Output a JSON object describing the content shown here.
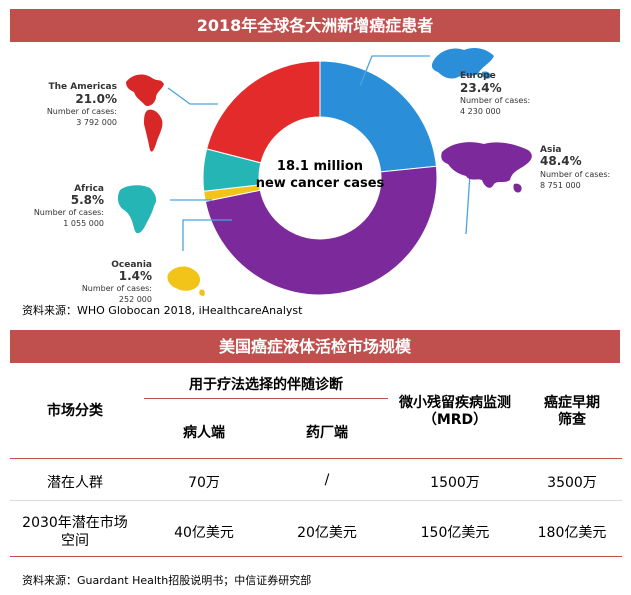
{
  "chart_data": {
    "type": "pie",
    "title": "2018年全球各大洲新增癌症患者",
    "center_label": [
      "18.1 million",
      "new cancer cases"
    ],
    "source": "资料来源：WHO Globocan 2018, iHealthcareAnalyst",
    "slices": [
      {
        "name": "Europe",
        "percent_label": "23.4%",
        "value": 23.4,
        "cases_label": "Number of cases:",
        "cases": "4 230 000",
        "color": "#2a8fd8"
      },
      {
        "name": "Asia",
        "percent_label": "48.4%",
        "value": 48.4,
        "cases_label": "Number of cases:",
        "cases": "8 751 000",
        "color": "#7c2a9b"
      },
      {
        "name": "Oceania",
        "percent_label": "1.4%",
        "value": 1.4,
        "cases_label": "Number of cases:",
        "cases": "252 000",
        "color": "#f2c318"
      },
      {
        "name": "Africa",
        "percent_label": "5.8%",
        "value": 5.8,
        "cases_label": "Number of cases:",
        "cases": "1 055 000",
        "color": "#26b5b5"
      },
      {
        "name": "The Americas",
        "percent_label": "21.0%",
        "value": 21.0,
        "cases_label": "Number of cases:",
        "cases": "3 792 000",
        "color": "#e32b2b"
      }
    ]
  },
  "table": {
    "title": "美国癌症液体活检市场规模",
    "header": {
      "category": "市场分类",
      "group": "用于疗法选择的伴随诊断",
      "sub1": "病人端",
      "sub2": "药厂端",
      "mrd_line1": "微小残留疾病监测",
      "mrd_line2": "（MRD）",
      "early_line1": "癌症早期",
      "early_line2": "筛查"
    },
    "rows": [
      {
        "label_line1": "潜在人群",
        "label_line2": "",
        "values": [
          "70万",
          "/",
          "1500万",
          "3500万"
        ]
      },
      {
        "label_line1": "2030年潜在市场",
        "label_line2": "空间",
        "values": [
          "40亿美元",
          "20亿美元",
          "150亿美元",
          "180亿美元"
        ]
      }
    ],
    "source": "资料来源：Guardant Health招股说明书；中信证券研究部"
  },
  "colors": {
    "banner": "#c0504d",
    "map_line": "#4aa3e0"
  }
}
